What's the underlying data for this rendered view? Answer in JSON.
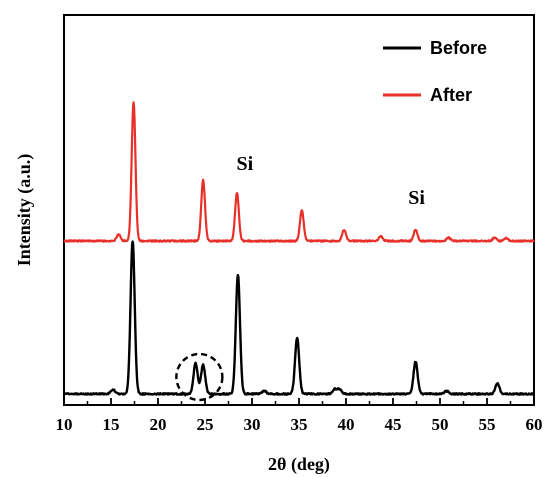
{
  "chart_data": {
    "type": "line",
    "title": "",
    "xlabel": "2θ (deg)",
    "ylabel": "Intensity (a.u.)",
    "xlim": [
      10,
      60
    ],
    "x_ticks": [
      "10",
      "15",
      "20",
      "25",
      "30",
      "35",
      "40",
      "45",
      "50",
      "55",
      "60"
    ],
    "y_ticks_labeled": false,
    "grid": false,
    "legend_position": "top-right",
    "legend": [
      "Before",
      "After"
    ],
    "colors": {
      "Before": "#000000",
      "After": "#e8302a"
    },
    "series": [
      {
        "name": "Before",
        "baseline": 2,
        "peaks": [
          {
            "x": 15.2,
            "h": 3
          },
          {
            "x": 17.3,
            "h": 100
          },
          {
            "x": 24.0,
            "h": 20
          },
          {
            "x": 24.8,
            "h": 19
          },
          {
            "x": 28.5,
            "h": 78
          },
          {
            "x": 31.3,
            "h": 2
          },
          {
            "x": 34.8,
            "h": 37
          },
          {
            "x": 38.8,
            "h": 3
          },
          {
            "x": 39.3,
            "h": 3
          },
          {
            "x": 47.4,
            "h": 21
          },
          {
            "x": 50.7,
            "h": 2
          },
          {
            "x": 56.1,
            "h": 7
          }
        ]
      },
      {
        "name": "After",
        "baseline": 0,
        "peaks": [
          {
            "x": 15.8,
            "h": 4
          },
          {
            "x": 17.4,
            "h": 87
          },
          {
            "x": 24.8,
            "h": 38
          },
          {
            "x": 28.4,
            "h": 30
          },
          {
            "x": 35.3,
            "h": 19
          },
          {
            "x": 39.8,
            "h": 7
          },
          {
            "x": 43.7,
            "h": 3
          },
          {
            "x": 47.4,
            "h": 7
          },
          {
            "x": 50.9,
            "h": 2
          },
          {
            "x": 55.8,
            "h": 2
          },
          {
            "x": 57.0,
            "h": 2
          }
        ]
      }
    ],
    "annotations": [
      {
        "text": "Si",
        "x": 28.5,
        "series": "After"
      },
      {
        "text": "Si",
        "x": 47.4,
        "series": "After"
      },
      {
        "shape": "dashed-circle",
        "x": 24.4,
        "series": "Before"
      }
    ]
  }
}
